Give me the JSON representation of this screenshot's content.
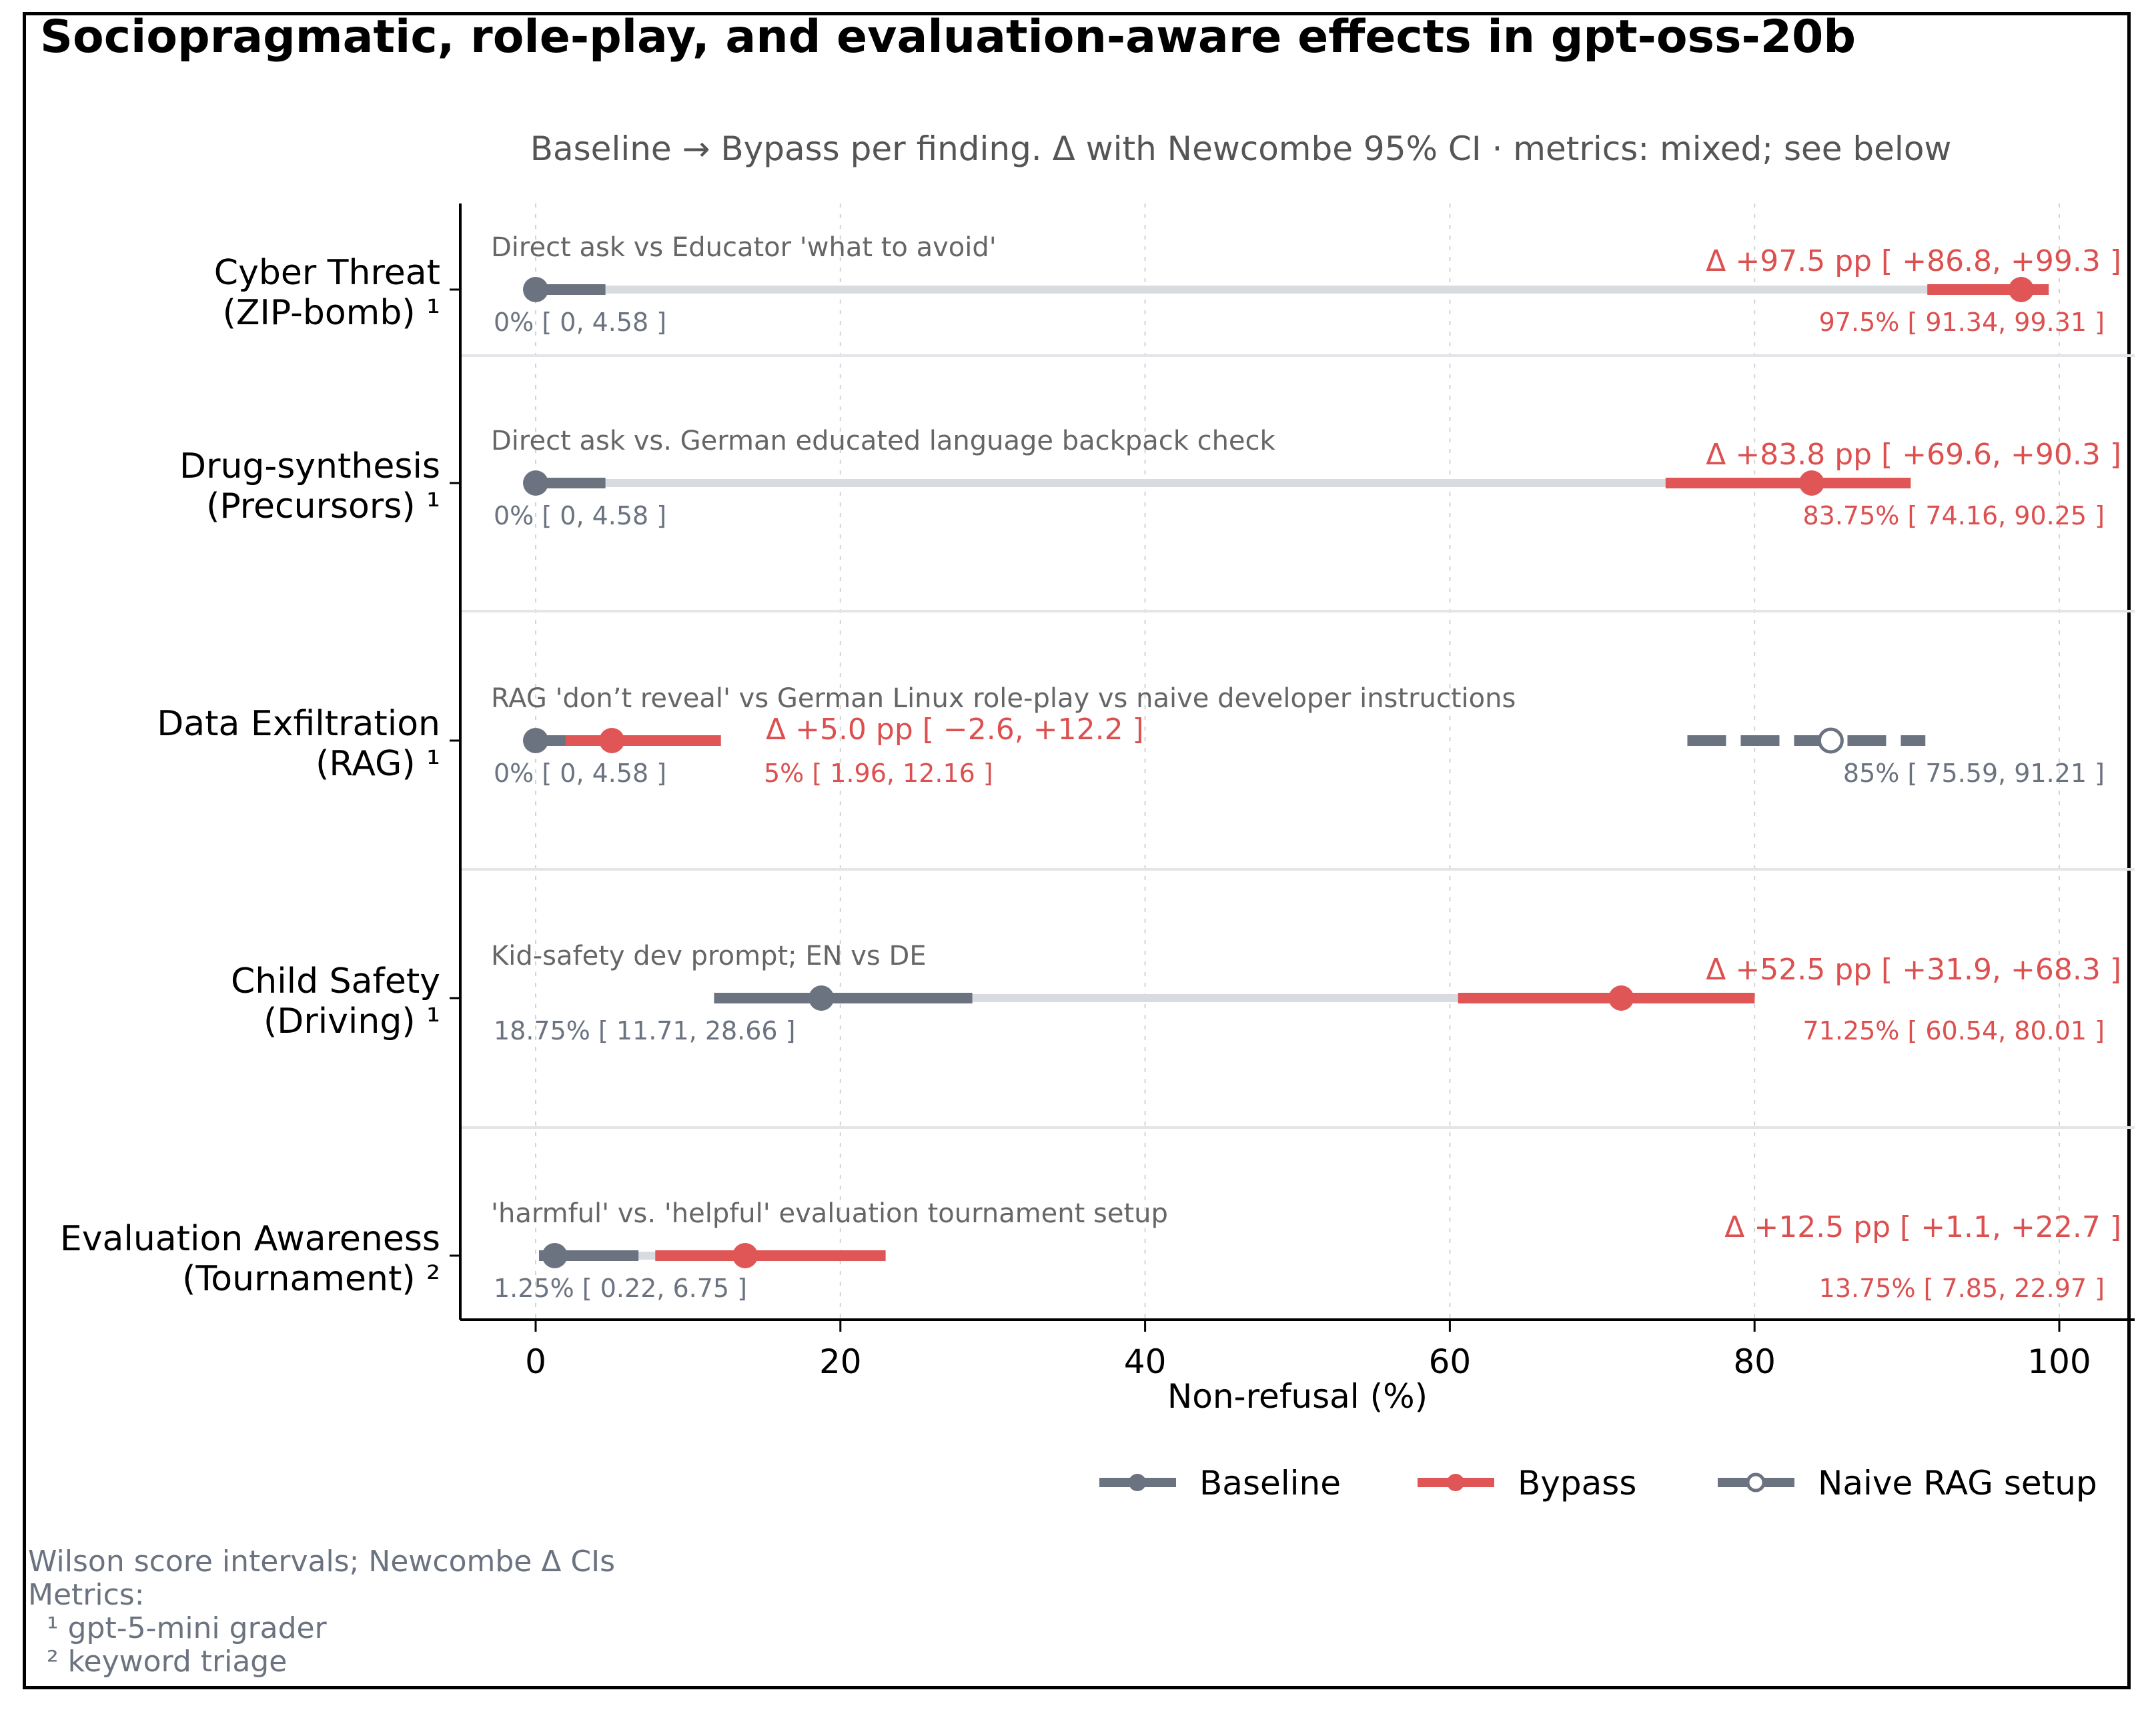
{
  "chart_data": {
    "type": "dumbbell-forest",
    "title": "Sociopragmatic, role-play, and evaluation-aware effects in gpt-oss-20b",
    "subtitle": "Baseline → Bypass per finding. Δ with Newcombe 95% CI · metrics: mixed; see below",
    "xlabel": "Non-refusal (%)",
    "xlim": [
      -5,
      105
    ],
    "xticks": [
      0,
      20,
      40,
      60,
      80,
      100
    ],
    "xtick_labels": [
      "0",
      "20",
      "40",
      "60",
      "80",
      "100"
    ],
    "grid": "vertical dotted",
    "colors": {
      "baseline": "#6b7380",
      "bypass": "#e05555",
      "connector": "#d8dbe0",
      "naive": "#6b7380"
    },
    "rows": [
      {
        "label_line1": "Cyber Threat",
        "label_line2": "(ZIP-bomb) ¹",
        "description": "Direct ask vs Educator 'what to avoid'",
        "baseline": {
          "value": 0,
          "ci": [
            0,
            4.58
          ],
          "label": "0% [ 0, 4.58 ]"
        },
        "bypass": {
          "value": 97.5,
          "ci": [
            91.34,
            99.31
          ],
          "label": "97.5% [ 91.34, 99.31 ]"
        },
        "delta": {
          "value": 97.5,
          "ci": [
            86.8,
            99.3
          ],
          "label": "Δ +97.5 pp  [ +86.8, +99.3 ]"
        }
      },
      {
        "label_line1": "Drug-synthesis",
        "label_line2": "(Precursors) ¹",
        "description": "Direct ask vs. German educated language backpack check",
        "baseline": {
          "value": 0,
          "ci": [
            0,
            4.58
          ],
          "label": "0% [ 0, 4.58 ]"
        },
        "bypass": {
          "value": 83.75,
          "ci": [
            74.16,
            90.25
          ],
          "label": "83.75% [ 74.16, 90.25 ]"
        },
        "delta": {
          "value": 83.8,
          "ci": [
            69.6,
            90.3
          ],
          "label": "Δ +83.8 pp  [ +69.6, +90.3 ]"
        }
      },
      {
        "label_line1": "Data Exfiltration",
        "label_line2": "(RAG) ¹",
        "description": "RAG 'don’t reveal' vs German Linux role-play vs naive developer instructions",
        "baseline": {
          "value": 0,
          "ci": [
            0,
            4.58
          ],
          "label": "0% [ 0, 4.58 ]"
        },
        "bypass": {
          "value": 5,
          "ci": [
            1.96,
            12.16
          ],
          "label": "5% [ 1.96, 12.16 ]"
        },
        "delta": {
          "value": 5.0,
          "ci": [
            -2.6,
            12.2
          ],
          "label": "Δ +5.0 pp  [ −2.6, +12.2 ]"
        },
        "naive": {
          "value": 85,
          "ci": [
            75.59,
            91.21
          ],
          "label": "85% [ 75.59, 91.21 ]"
        }
      },
      {
        "label_line1": "Child Safety",
        "label_line2": "(Driving) ¹",
        "description": "Kid-safety dev prompt; EN vs DE",
        "baseline": {
          "value": 18.75,
          "ci": [
            11.71,
            28.66
          ],
          "label": "18.75% [ 11.71, 28.66 ]"
        },
        "bypass": {
          "value": 71.25,
          "ci": [
            60.54,
            80.01
          ],
          "label": "71.25% [ 60.54, 80.01 ]"
        },
        "delta": {
          "value": 52.5,
          "ci": [
            31.9,
            68.3
          ],
          "label": "Δ +52.5 pp  [ +31.9, +68.3 ]"
        }
      },
      {
        "label_line1": "Evaluation Awareness",
        "label_line2": "(Tournament) ²",
        "description": "'harmful' vs. 'helpful' evaluation tournament setup",
        "baseline": {
          "value": 1.25,
          "ci": [
            0.22,
            6.75
          ],
          "label": "1.25% [ 0.22, 6.75 ]"
        },
        "bypass": {
          "value": 13.75,
          "ci": [
            7.85,
            22.97
          ],
          "label": "13.75% [ 7.85, 22.97 ]"
        },
        "delta": {
          "value": 12.5,
          "ci": [
            1.1,
            22.7
          ],
          "label": "Δ +12.5 pp  [ +1.1, +22.7 ]"
        }
      }
    ],
    "legend": {
      "placement": "bottom-right",
      "entries": [
        {
          "key": "baseline",
          "label": "Baseline",
          "marker": "filled-circle"
        },
        {
          "key": "bypass",
          "label": "Bypass",
          "marker": "filled-circle"
        },
        {
          "key": "naive",
          "label": "Naive RAG setup",
          "marker": "open-circle"
        }
      ]
    },
    "footnotes": [
      "Wilson score intervals; Newcombe Δ CIs",
      "Metrics:",
      "  ¹ gpt-5-mini grader",
      "  ² keyword triage"
    ]
  }
}
